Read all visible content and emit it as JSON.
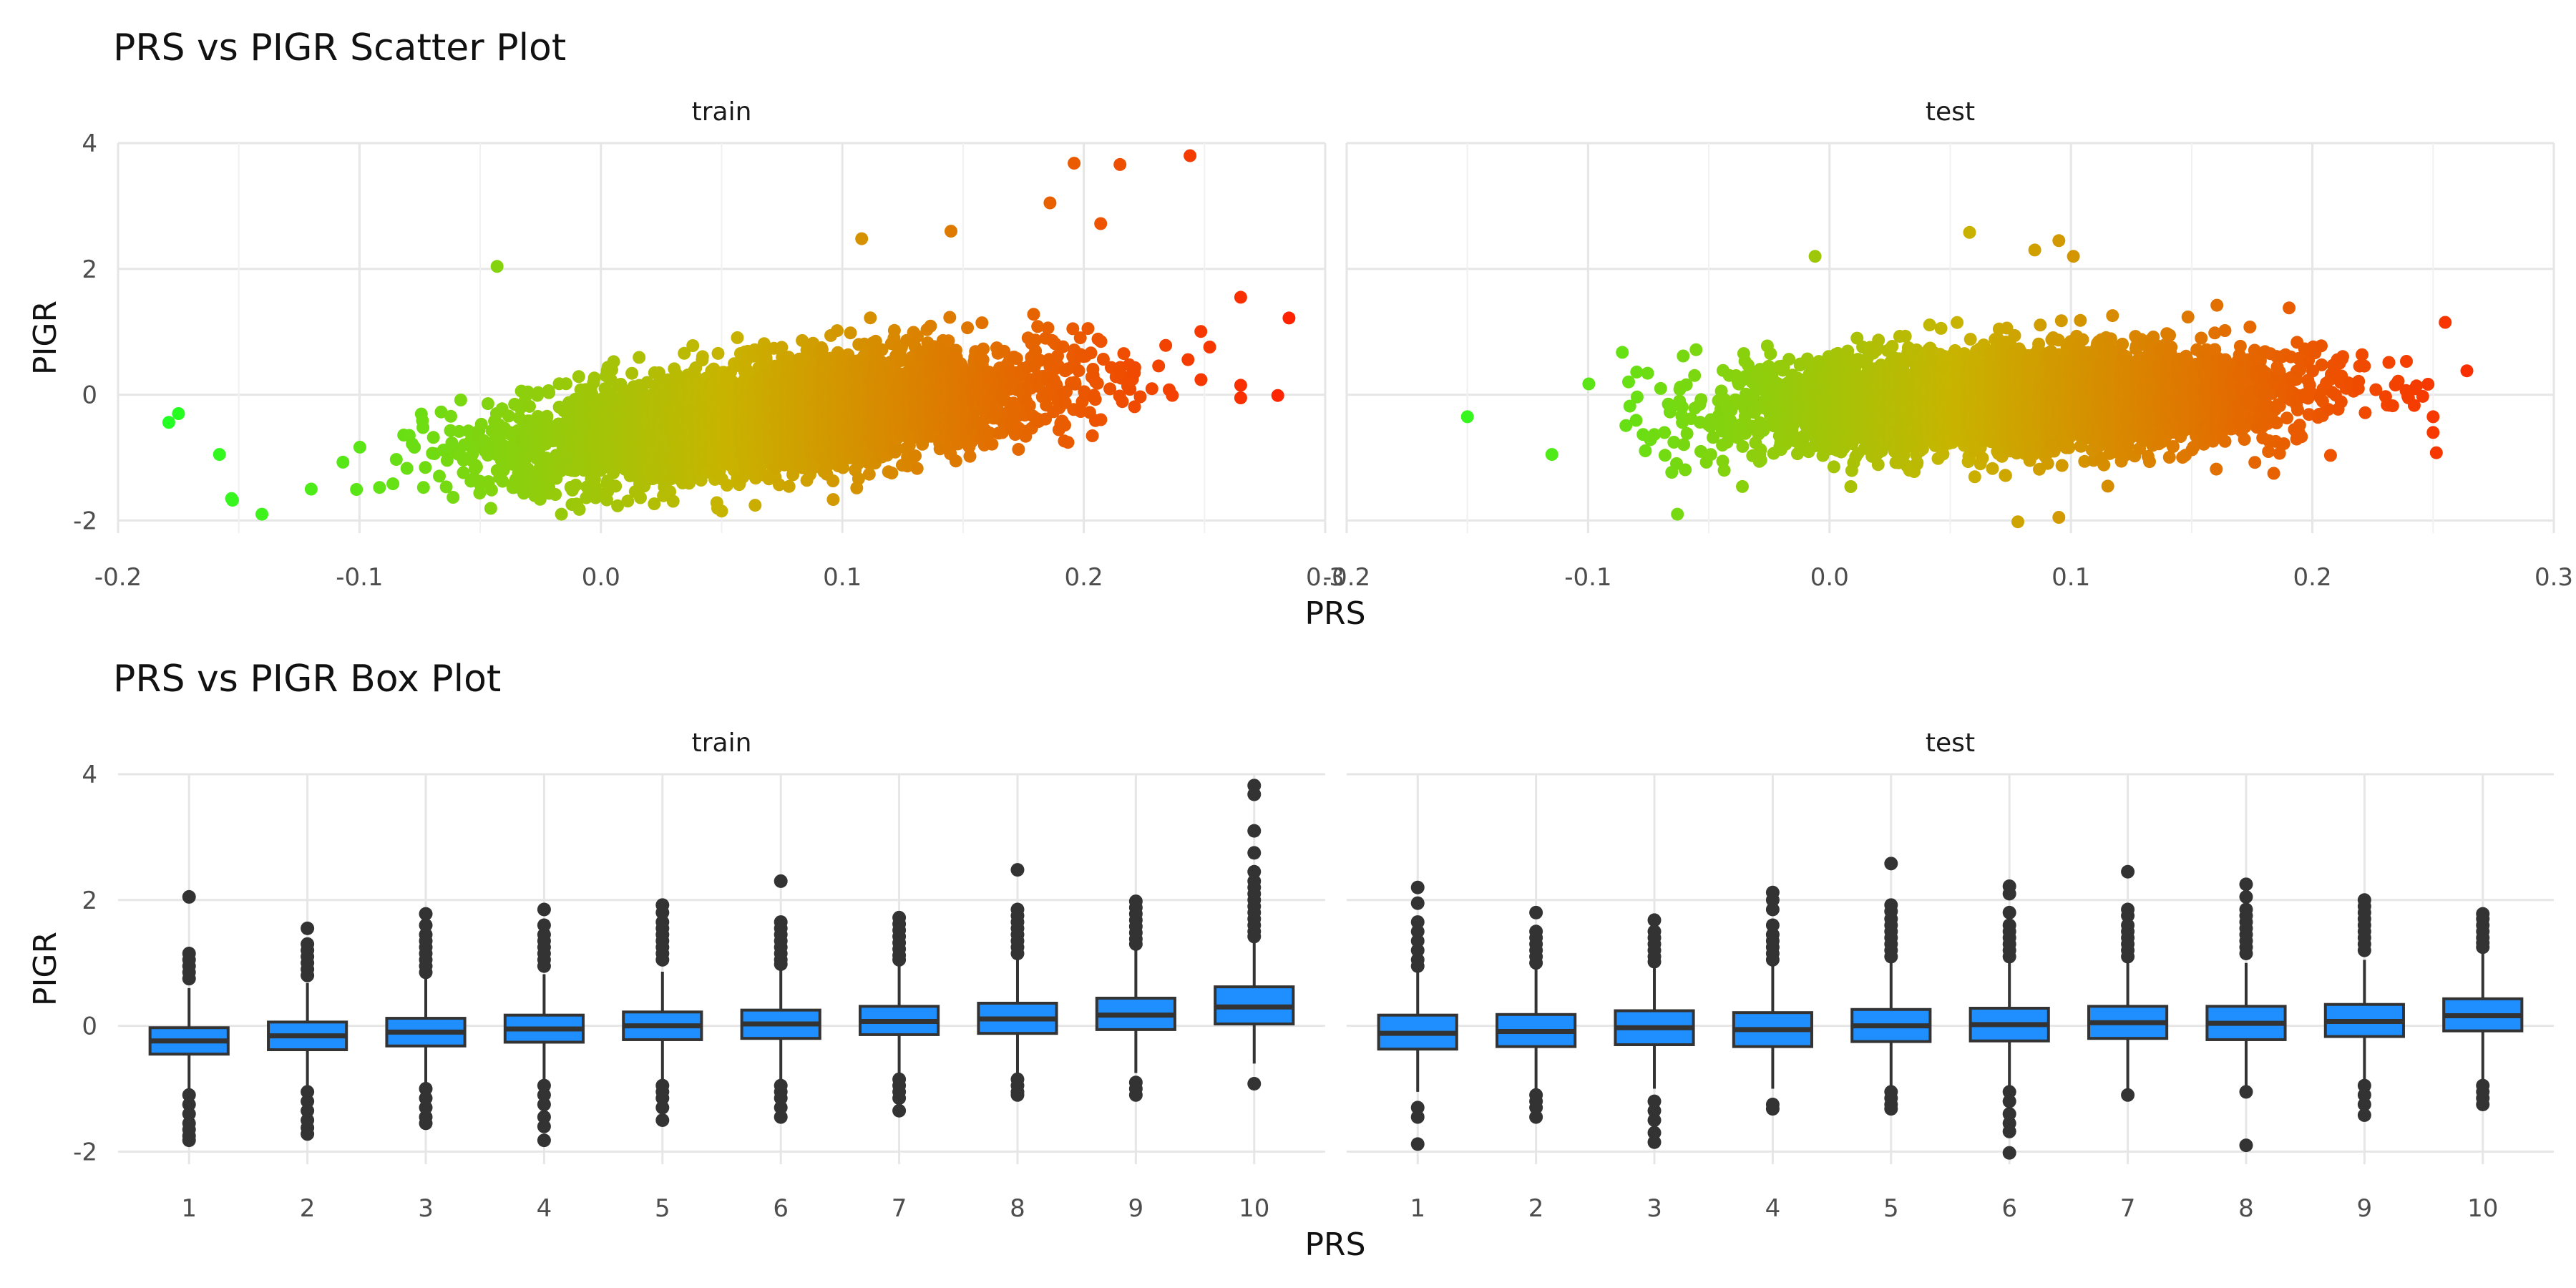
{
  "chart_data": [
    {
      "type": "scatter",
      "title": "PRS vs PIGR Scatter Plot",
      "xlabel": "PRS",
      "ylabel": "PIGR",
      "panels": [
        "train",
        "test"
      ],
      "xlim": [
        -0.2,
        0.3
      ],
      "ylim": [
        -2.2,
        4.0
      ],
      "x_ticks": [
        "-0.2",
        "-0.1",
        "0.0",
        "0.1",
        "0.2",
        "0.3"
      ],
      "y_ticks": [
        "-2",
        "0",
        "2",
        "4"
      ],
      "grid": true,
      "color_scale": {
        "low": "#22ff22",
        "mid": "#c8b400",
        "high": "#ff2200"
      },
      "train": {
        "x_center": 0.075,
        "x_sd": 0.055,
        "x_min": -0.18,
        "x_max": 0.285,
        "slope": 4.3,
        "intercept": -0.33,
        "noise_sd": 0.42,
        "notable_points": [
          [
            0.244,
            3.8
          ],
          [
            0.196,
            3.68
          ],
          [
            0.215,
            3.66
          ],
          [
            0.186,
            3.05
          ],
          [
            0.207,
            2.72
          ],
          [
            0.285,
            1.22
          ],
          [
            0.265,
            1.55
          ],
          [
            -0.043,
            2.04
          ],
          [
            0.108,
            2.48
          ],
          [
            0.145,
            2.6
          ],
          [
            -0.179,
            -0.44
          ],
          [
            -0.175,
            -0.3
          ],
          [
            -0.158,
            -0.95
          ],
          [
            -0.153,
            -1.65
          ],
          [
            -0.12,
            -1.5
          ],
          [
            0.265,
            0.15
          ],
          [
            0.265,
            -0.05
          ],
          [
            0.05,
            -1.85
          ],
          [
            -0.01,
            -1.75
          ]
        ]
      },
      "test": {
        "x_center": 0.078,
        "x_sd": 0.055,
        "x_min": -0.16,
        "x_max": 0.265,
        "slope": 1.3,
        "intercept": -0.1,
        "noise_sd": 0.4,
        "notable_points": [
          [
            0.058,
            2.58
          ],
          [
            0.095,
            2.45
          ],
          [
            0.085,
            2.3
          ],
          [
            0.101,
            2.2
          ],
          [
            -0.006,
            2.2
          ],
          [
            0.264,
            0.38
          ],
          [
            0.255,
            1.15
          ],
          [
            0.25,
            -0.35
          ],
          [
            0.25,
            -0.6
          ],
          [
            -0.15,
            -0.35
          ],
          [
            -0.115,
            -0.95
          ],
          [
            -0.063,
            -1.9
          ],
          [
            0.078,
            -2.02
          ],
          [
            0.095,
            -1.95
          ],
          [
            0.184,
            -1.25
          ]
        ]
      }
    },
    {
      "type": "box",
      "title": "PRS vs PIGR Box Plot",
      "xlabel": "PRS",
      "ylabel": "PIGR",
      "panels": [
        "train",
        "test"
      ],
      "categories": [
        "1",
        "2",
        "3",
        "4",
        "5",
        "6",
        "7",
        "8",
        "9",
        "10"
      ],
      "ylim": [
        -2.2,
        4.0
      ],
      "y_ticks": [
        "-2",
        "0",
        "2",
        "4"
      ],
      "grid": true,
      "box_color": "#1f8fff",
      "train": [
        {
          "q1": -0.45,
          "median": -0.24,
          "q3": -0.03,
          "lo": -1.05,
          "hi": 0.6,
          "outliers": [
            2.05,
            1.15,
            1.05,
            0.95,
            0.85,
            0.75,
            -1.1,
            -1.25,
            -1.4,
            -1.55,
            -1.65,
            -1.75,
            -1.82
          ]
        },
        {
          "q1": -0.38,
          "median": -0.16,
          "q3": 0.06,
          "lo": -0.98,
          "hi": 0.68,
          "outliers": [
            1.55,
            1.3,
            1.2,
            1.1,
            1.0,
            0.9,
            0.8,
            -1.05,
            -1.2,
            -1.35,
            -1.5,
            -1.62,
            -1.72
          ]
        },
        {
          "q1": -0.32,
          "median": -0.1,
          "q3": 0.12,
          "lo": -0.9,
          "hi": 0.75,
          "outliers": [
            1.78,
            1.6,
            1.45,
            1.35,
            1.25,
            1.15,
            1.05,
            0.95,
            0.85,
            -1.0,
            -1.15,
            -1.3,
            -1.45,
            -1.55
          ]
        },
        {
          "q1": -0.26,
          "median": -0.05,
          "q3": 0.17,
          "lo": -0.85,
          "hi": 0.82,
          "outliers": [
            1.85,
            1.6,
            1.45,
            1.35,
            1.25,
            1.15,
            1.05,
            0.95,
            -0.95,
            -1.1,
            -1.25,
            -1.45,
            -1.6,
            -1.82
          ]
        },
        {
          "q1": -0.22,
          "median": 0.0,
          "q3": 0.22,
          "lo": -0.85,
          "hi": 0.86,
          "outliers": [
            1.92,
            1.8,
            1.65,
            1.55,
            1.45,
            1.35,
            1.25,
            1.15,
            1.05,
            -0.95,
            -1.05,
            -1.15,
            -1.3,
            -1.5
          ]
        },
        {
          "q1": -0.2,
          "median": 0.03,
          "q3": 0.25,
          "lo": -0.85,
          "hi": 0.9,
          "outliers": [
            2.3,
            1.65,
            1.55,
            1.45,
            1.35,
            1.25,
            1.15,
            1.05,
            0.98,
            -0.95,
            -1.05,
            -1.15,
            -1.3,
            -1.45
          ]
        },
        {
          "q1": -0.14,
          "median": 0.07,
          "q3": 0.31,
          "lo": -0.8,
          "hi": 0.96,
          "outliers": [
            1.72,
            1.62,
            1.52,
            1.42,
            1.32,
            1.22,
            1.12,
            1.05,
            -0.85,
            -0.95,
            -1.05,
            -1.15,
            -1.35
          ]
        },
        {
          "q1": -0.12,
          "median": 0.11,
          "q3": 0.36,
          "lo": -0.78,
          "hi": 1.05,
          "outliers": [
            2.48,
            1.85,
            1.75,
            1.65,
            1.55,
            1.45,
            1.35,
            1.25,
            1.15,
            -0.85,
            -0.95,
            -1.05,
            -1.1
          ]
        },
        {
          "q1": -0.06,
          "median": 0.17,
          "q3": 0.44,
          "lo": -0.75,
          "hi": 1.2,
          "outliers": [
            1.98,
            1.88,
            1.78,
            1.68,
            1.58,
            1.48,
            1.38,
            1.3,
            -0.9,
            -1.0,
            -1.1
          ]
        },
        {
          "q1": 0.03,
          "median": 0.3,
          "q3": 0.62,
          "lo": -0.6,
          "hi": 1.35,
          "outliers": [
            3.82,
            3.68,
            3.1,
            2.75,
            2.45,
            2.3,
            2.2,
            2.1,
            2.0,
            1.9,
            1.8,
            1.7,
            1.6,
            1.5,
            1.42,
            -0.92
          ]
        }
      ],
      "test": [
        {
          "q1": -0.37,
          "median": -0.12,
          "q3": 0.17,
          "lo": -1.05,
          "hi": 0.85,
          "outliers": [
            2.2,
            1.95,
            1.65,
            1.5,
            1.35,
            1.2,
            1.05,
            0.95,
            -1.3,
            -1.45,
            -1.88
          ]
        },
        {
          "q1": -0.33,
          "median": -0.09,
          "q3": 0.18,
          "lo": -1.0,
          "hi": 0.9,
          "outliers": [
            1.8,
            1.5,
            1.4,
            1.3,
            1.2,
            1.1,
            1.0,
            -1.1,
            -1.2,
            -1.3,
            -1.45
          ]
        },
        {
          "q1": -0.3,
          "median": -0.03,
          "q3": 0.24,
          "lo": -1.0,
          "hi": 0.95,
          "outliers": [
            1.68,
            1.5,
            1.4,
            1.3,
            1.2,
            1.1,
            1.02,
            -1.2,
            -1.35,
            -1.5,
            -1.7,
            -1.85
          ]
        },
        {
          "q1": -0.33,
          "median": -0.06,
          "q3": 0.21,
          "lo": -1.0,
          "hi": 0.95,
          "outliers": [
            2.12,
            2.0,
            1.85,
            1.6,
            1.45,
            1.35,
            1.25,
            1.15,
            1.05,
            -1.25,
            -1.32
          ]
        },
        {
          "q1": -0.25,
          "median": 0.0,
          "q3": 0.26,
          "lo": -1.0,
          "hi": 1.0,
          "outliers": [
            2.58,
            1.92,
            1.82,
            1.7,
            1.6,
            1.5,
            1.4,
            1.3,
            1.2,
            1.1,
            -1.05,
            -1.15,
            -1.25,
            -1.32
          ]
        },
        {
          "q1": -0.24,
          "median": 0.02,
          "q3": 0.28,
          "lo": -1.0,
          "hi": 1.0,
          "outliers": [
            2.22,
            2.1,
            1.8,
            1.6,
            1.5,
            1.4,
            1.3,
            1.2,
            1.1,
            -1.05,
            -1.2,
            -1.4,
            -1.55,
            -1.68,
            -2.02
          ]
        },
        {
          "q1": -0.2,
          "median": 0.05,
          "q3": 0.31,
          "lo": -1.0,
          "hi": 1.0,
          "outliers": [
            2.45,
            1.85,
            1.75,
            1.6,
            1.5,
            1.4,
            1.3,
            1.2,
            1.1,
            -1.1
          ]
        },
        {
          "q1": -0.22,
          "median": 0.04,
          "q3": 0.31,
          "lo": -1.0,
          "hi": 1.0,
          "outliers": [
            2.25,
            2.05,
            1.85,
            1.75,
            1.65,
            1.55,
            1.45,
            1.35,
            1.25,
            1.15,
            -1.05,
            -1.9
          ]
        },
        {
          "q1": -0.17,
          "median": 0.07,
          "q3": 0.34,
          "lo": -0.95,
          "hi": 1.05,
          "outliers": [
            2.0,
            1.9,
            1.8,
            1.7,
            1.6,
            1.5,
            1.4,
            1.3,
            1.2,
            -0.95,
            -1.1,
            -1.25,
            -1.42
          ]
        },
        {
          "q1": -0.08,
          "median": 0.16,
          "q3": 0.43,
          "lo": -0.85,
          "hi": 1.15,
          "outliers": [
            1.78,
            1.7,
            1.6,
            1.5,
            1.4,
            1.32,
            1.25,
            -0.95,
            -1.05,
            -1.15,
            -1.25
          ]
        }
      ]
    }
  ]
}
